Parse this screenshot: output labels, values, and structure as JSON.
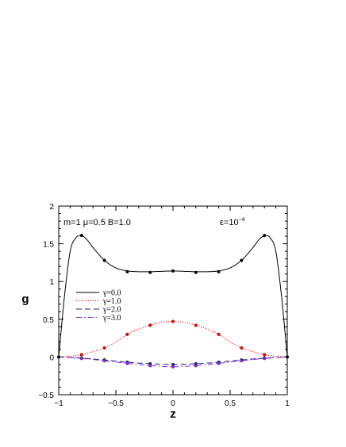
{
  "chart_data": {
    "type": "line",
    "xlabel": "z",
    "ylabel": "g",
    "xlim": [
      -1,
      1
    ],
    "ylim": [
      -0.5,
      2
    ],
    "x_ticks": [
      -1,
      -0.5,
      0,
      0.5,
      1
    ],
    "x_tick_labels": [
      "−1",
      "−0.5",
      "0",
      "0.5",
      "1"
    ],
    "y_ticks": [
      -0.5,
      0,
      0.5,
      1,
      1.5,
      2
    ],
    "y_tick_labels": [
      "−0.5",
      "0",
      "0.5",
      "1",
      "1.5",
      "2"
    ],
    "annotation_params": "m=1 μ=0.5 B=1.0",
    "annotation_epsilon": "ε=10",
    "annotation_epsilon_exp": "−4",
    "legend_position": "center-left",
    "grid": false,
    "series": [
      {
        "name": "γ=0.0",
        "color": "#000000",
        "dash": "solid",
        "x": [
          -1,
          -0.95,
          -0.9,
          -0.85,
          -0.8,
          -0.75,
          -0.7,
          -0.6,
          -0.5,
          -0.4,
          -0.3,
          -0.2,
          -0.1,
          0,
          0.1,
          0.2,
          0.3,
          0.4,
          0.5,
          0.6,
          0.7,
          0.75,
          0.8,
          0.85,
          0.9,
          0.95,
          1
        ],
        "y": [
          0,
          0.8,
          1.4,
          1.58,
          1.61,
          1.55,
          1.45,
          1.28,
          1.18,
          1.14,
          1.13,
          1.13,
          1.135,
          1.14,
          1.135,
          1.13,
          1.13,
          1.14,
          1.18,
          1.28,
          1.45,
          1.55,
          1.61,
          1.58,
          1.4,
          0.8,
          0
        ]
      },
      {
        "name": "γ=1.0",
        "color": "#ff0000",
        "dash": "dotted",
        "x": [
          -1,
          -0.9,
          -0.8,
          -0.7,
          -0.6,
          -0.5,
          -0.4,
          -0.3,
          -0.2,
          -0.1,
          0,
          0.1,
          0.2,
          0.3,
          0.4,
          0.5,
          0.6,
          0.7,
          0.8,
          0.9,
          1
        ],
        "y": [
          0,
          0.01,
          0.03,
          0.07,
          0.12,
          0.2,
          0.3,
          0.37,
          0.42,
          0.46,
          0.47,
          0.46,
          0.42,
          0.37,
          0.3,
          0.2,
          0.12,
          0.07,
          0.03,
          0.01,
          0
        ]
      },
      {
        "name": "γ=2.0",
        "color": "#1a1a8c",
        "dash": "dashed",
        "x": [
          -1,
          -0.8,
          -0.6,
          -0.4,
          -0.2,
          0,
          0.2,
          0.4,
          0.6,
          0.8,
          1
        ],
        "y": [
          0,
          -0.015,
          -0.04,
          -0.07,
          -0.09,
          -0.1,
          -0.09,
          -0.07,
          -0.04,
          -0.015,
          0
        ]
      },
      {
        "name": "γ=3.0",
        "color": "#8a2be2",
        "dash": "dashdot",
        "x": [
          -1,
          -0.8,
          -0.6,
          -0.4,
          -0.2,
          0,
          0.2,
          0.4,
          0.6,
          0.8,
          1
        ],
        "y": [
          0,
          -0.02,
          -0.05,
          -0.085,
          -0.115,
          -0.13,
          -0.115,
          -0.085,
          -0.05,
          -0.02,
          0
        ]
      }
    ],
    "markers": [
      {
        "series": "γ=0.0",
        "color": "#000000",
        "x": [
          -1,
          -0.8,
          -0.6,
          -0.4,
          -0.2,
          0,
          0.2,
          0.4,
          0.6,
          0.8,
          1
        ],
        "y": [
          0,
          1.61,
          1.28,
          1.13,
          1.12,
          1.14,
          1.12,
          1.13,
          1.28,
          1.61,
          0
        ]
      },
      {
        "series": "γ=1.0",
        "color": "#ff0000",
        "x": [
          -0.8,
          -0.6,
          -0.4,
          -0.2,
          0,
          0.2,
          0.4,
          0.6,
          0.8
        ],
        "y": [
          0.03,
          0.12,
          0.3,
          0.42,
          0.47,
          0.42,
          0.3,
          0.12,
          0.03
        ]
      },
      {
        "series": "γ=2.0",
        "color": "#1a1a8c",
        "x": [
          -0.8,
          -0.6,
          -0.4,
          -0.2,
          0,
          0.2,
          0.4,
          0.6,
          0.8
        ],
        "y": [
          -0.015,
          -0.04,
          -0.07,
          -0.09,
          -0.1,
          -0.09,
          -0.07,
          -0.04,
          -0.015
        ]
      },
      {
        "series": "γ=3.0",
        "color": "#8a2be2",
        "x": [
          -0.8,
          -0.6,
          -0.4,
          -0.2,
          0,
          0.2,
          0.4,
          0.6,
          0.8
        ],
        "y": [
          -0.02,
          -0.05,
          -0.085,
          -0.115,
          -0.13,
          -0.115,
          -0.085,
          -0.05,
          -0.02
        ]
      }
    ]
  }
}
